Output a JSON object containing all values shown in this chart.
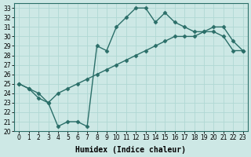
{
  "xlabel": "Humidex (Indice chaleur)",
  "ylabel": "",
  "xlim": [
    -0.5,
    23.5
  ],
  "ylim": [
    20,
    33.5
  ],
  "xticks": [
    0,
    1,
    2,
    3,
    4,
    5,
    6,
    7,
    8,
    9,
    10,
    11,
    12,
    13,
    14,
    15,
    16,
    17,
    18,
    19,
    20,
    21,
    22,
    23
  ],
  "yticks": [
    20,
    21,
    22,
    23,
    24,
    25,
    26,
    27,
    28,
    29,
    30,
    31,
    32,
    33
  ],
  "bg_color": "#cde8e5",
  "line_color": "#2a6e68",
  "grid_color": "#b0d8d4",
  "line1_x": [
    0,
    1,
    2,
    3,
    4,
    5,
    6,
    7,
    8,
    9,
    10,
    11,
    12,
    13,
    14,
    15,
    16,
    17,
    18,
    19,
    20,
    21,
    22,
    23
  ],
  "line1_y": [
    25,
    24.5,
    23.5,
    23,
    20.5,
    21,
    21,
    20.5,
    29,
    28.5,
    31,
    32,
    33,
    33,
    31.5,
    32.5,
    31.5,
    31,
    30.5,
    30.5,
    31,
    31,
    29.5,
    28.5
  ],
  "line2_x": [
    0,
    1,
    2,
    3,
    4,
    5,
    6,
    7,
    8,
    9,
    10,
    11,
    12,
    13,
    14,
    15,
    16,
    17,
    18,
    19,
    20,
    21,
    22,
    23
  ],
  "line2_y": [
    25,
    24.5,
    24,
    23,
    24,
    24.5,
    25,
    25.5,
    26,
    26.5,
    27,
    27.5,
    28,
    28.5,
    29,
    29.5,
    30,
    30,
    30,
    30.5,
    30.5,
    30,
    28.5,
    28.5
  ],
  "marker": "D",
  "marker_size": 2.5,
  "linewidth": 1.0,
  "tick_fontsize": 5.5,
  "label_fontsize": 7
}
